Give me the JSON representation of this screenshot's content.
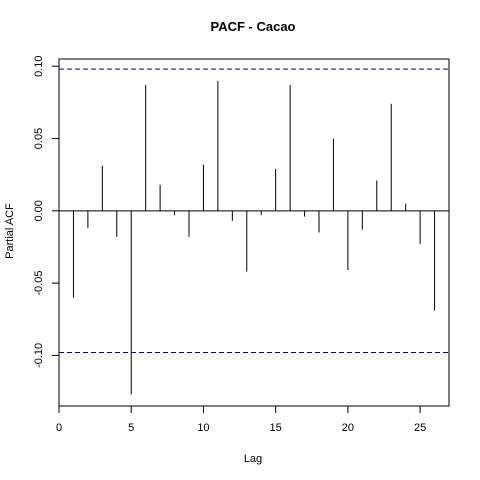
{
  "chart_data": {
    "type": "bar",
    "title": "PACF - Cacao",
    "xlabel": "Lag",
    "ylabel": "Partial ACF",
    "xlim": [
      0,
      27
    ],
    "ylim": [
      -0.135,
      0.105
    ],
    "x_ticks": [
      0,
      5,
      10,
      15,
      20,
      25
    ],
    "x_tick_labels": [
      "0",
      "5",
      "10",
      "15",
      "20",
      "25"
    ],
    "y_ticks": [
      -0.1,
      -0.05,
      0.0,
      0.05,
      0.1
    ],
    "y_tick_labels": [
      "-0.10",
      "-0.05",
      "0.00",
      "0.05",
      "0.10"
    ],
    "confidence_bound": 0.098,
    "grid": false,
    "lags": [
      1,
      2,
      3,
      4,
      5,
      6,
      7,
      8,
      9,
      10,
      11,
      12,
      13,
      14,
      15,
      16,
      17,
      18,
      19,
      20,
      21,
      22,
      23,
      24,
      25,
      26
    ],
    "values": [
      -0.06,
      -0.012,
      0.031,
      -0.018,
      -0.127,
      0.087,
      0.018,
      -0.003,
      -0.018,
      0.032,
      0.09,
      -0.007,
      -0.042,
      -0.003,
      0.029,
      0.087,
      -0.004,
      -0.015,
      0.05,
      -0.041,
      -0.013,
      0.021,
      0.074,
      0.005,
      -0.023,
      -0.069
    ],
    "colors": {
      "bars": "#000000",
      "bounds": "#00008b",
      "axis": "#000000"
    }
  }
}
